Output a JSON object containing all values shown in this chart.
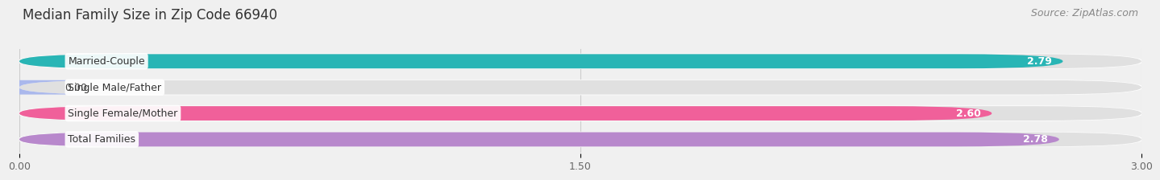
{
  "title": "Median Family Size in Zip Code 66940",
  "source": "Source: ZipAtlas.com",
  "categories": [
    "Married-Couple",
    "Single Male/Father",
    "Single Female/Mother",
    "Total Families"
  ],
  "values": [
    2.79,
    0.0,
    2.6,
    2.78
  ],
  "bar_colors": [
    "#29b5b5",
    "#aab8ec",
    "#f0609a",
    "#b888cc"
  ],
  "bar_label_colors": [
    "white",
    "#444444",
    "white",
    "white"
  ],
  "xlim": [
    0,
    3.0
  ],
  "xticks": [
    0.0,
    1.5,
    3.0
  ],
  "xtick_labels": [
    "0.00",
    "1.50",
    "3.00"
  ],
  "background_color": "#f0f0f0",
  "bar_bg_color": "#e0e0e0",
  "title_fontsize": 12,
  "source_fontsize": 9,
  "label_fontsize": 9,
  "value_fontsize": 9,
  "bar_height": 0.55
}
